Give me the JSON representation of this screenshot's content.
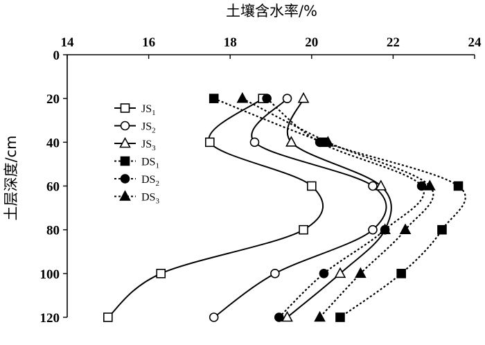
{
  "chart_data": {
    "type": "line",
    "xlabel": "土壤含水率/%",
    "ylabel": "土层深度/cm",
    "xlim": [
      14,
      24
    ],
    "ylim": [
      0,
      120
    ],
    "x_ticks": [
      14,
      16,
      18,
      20,
      22,
      24
    ],
    "y_ticks": [
      0,
      20,
      40,
      60,
      80,
      100,
      120
    ],
    "x_axis_position": "top",
    "y_axis_inverted": true,
    "grid": false,
    "legend_position": "left",
    "depths": [
      20,
      40,
      60,
      80,
      100,
      120
    ],
    "series": [
      {
        "name": "JS1",
        "base": "JS",
        "sub": "1",
        "style": "solid",
        "marker": "square",
        "filled": false,
        "values": [
          18.8,
          17.5,
          20.0,
          19.8,
          16.3,
          15.0
        ]
      },
      {
        "name": "JS2",
        "base": "JS",
        "sub": "2",
        "style": "solid",
        "marker": "circle",
        "filled": false,
        "values": [
          19.4,
          18.6,
          21.5,
          21.5,
          19.1,
          17.6
        ]
      },
      {
        "name": "JS3",
        "base": "JS",
        "sub": "3",
        "style": "solid",
        "marker": "triangle",
        "filled": false,
        "values": [
          19.8,
          19.5,
          21.7,
          21.8,
          20.7,
          19.4
        ]
      },
      {
        "name": "DS1",
        "base": "DS",
        "sub": "1",
        "style": "dotted",
        "marker": "square",
        "filled": true,
        "values": [
          17.6,
          20.3,
          23.6,
          23.2,
          22.2,
          20.7
        ]
      },
      {
        "name": "DS2",
        "base": "DS",
        "sub": "2",
        "style": "dotted",
        "marker": "circle",
        "filled": true,
        "values": [
          18.9,
          20.2,
          22.7,
          21.8,
          20.3,
          19.2
        ]
      },
      {
        "name": "DS3",
        "base": "DS",
        "sub": "3",
        "style": "dotted",
        "marker": "triangle",
        "filled": true,
        "values": [
          18.3,
          20.4,
          22.9,
          22.3,
          21.2,
          20.2
        ]
      }
    ]
  }
}
